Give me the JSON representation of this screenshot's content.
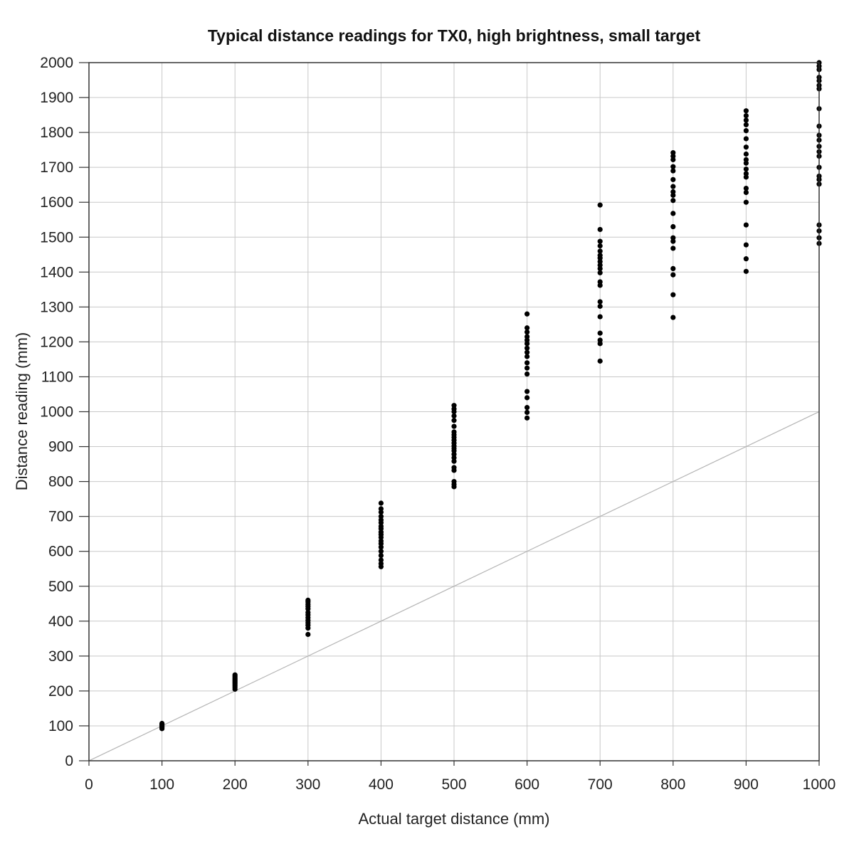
{
  "chart_data": {
    "type": "scatter",
    "title": "Typical distance readings for TX0, high brightness, small target",
    "xlabel": "Actual target distance (mm)",
    "ylabel": "Distance reading (mm)",
    "xlim": [
      0,
      1000
    ],
    "ylim": [
      0,
      2000
    ],
    "xticks": [
      0,
      100,
      200,
      300,
      400,
      500,
      600,
      700,
      800,
      900,
      1000
    ],
    "yticks": [
      0,
      100,
      200,
      300,
      400,
      500,
      600,
      700,
      800,
      900,
      1000,
      1100,
      1200,
      1300,
      1400,
      1500,
      1600,
      1700,
      1800,
      1900,
      2000
    ],
    "grid": true,
    "reference_line": {
      "from": [
        0,
        0
      ],
      "to": [
        1000,
        1000
      ],
      "color": "#b5b5b5"
    },
    "point_color": "#000000",
    "series": [
      {
        "x": 100,
        "y": [
          92,
          95,
          97,
          99,
          101,
          103,
          105,
          107
        ]
      },
      {
        "x": 200,
        "y": [
          205,
          210,
          214,
          218,
          222,
          226,
          230,
          234,
          238,
          242,
          246
        ]
      },
      {
        "x": 300,
        "y": [
          362,
          380,
          388,
          395,
          402,
          410,
          418,
          425,
          435,
          442,
          448,
          455,
          460
        ]
      },
      {
        "x": 400,
        "y": [
          556,
          565,
          575,
          588,
          600,
          612,
          622,
          630,
          640,
          648,
          655,
          665,
          672,
          682,
          690,
          700,
          712,
          722,
          738
        ]
      },
      {
        "x": 500,
        "y": [
          785,
          792,
          800,
          832,
          840,
          858,
          868,
          878,
          888,
          895,
          902,
          910,
          918,
          926,
          934,
          942,
          958,
          975,
          988,
          1000,
          1008,
          1018
        ]
      },
      {
        "x": 600,
        "y": [
          982,
          998,
          1012,
          1040,
          1058,
          1108,
          1125,
          1140,
          1158,
          1170,
          1182,
          1195,
          1205,
          1215,
          1228,
          1240,
          1280
        ]
      },
      {
        "x": 700,
        "y": [
          1145,
          1195,
          1205,
          1225,
          1272,
          1302,
          1315,
          1362,
          1372,
          1398,
          1410,
          1420,
          1430,
          1440,
          1448,
          1460,
          1475,
          1488,
          1522,
          1592
        ]
      },
      {
        "x": 800,
        "y": [
          1270,
          1335,
          1392,
          1410,
          1468,
          1488,
          1498,
          1530,
          1568,
          1605,
          1620,
          1630,
          1645,
          1665,
          1690,
          1702,
          1722,
          1732,
          1742
        ]
      },
      {
        "x": 900,
        "y": [
          1402,
          1438,
          1478,
          1535,
          1600,
          1628,
          1640,
          1672,
          1682,
          1695,
          1712,
          1722,
          1738,
          1758,
          1782,
          1805,
          1822,
          1835,
          1848,
          1862
        ]
      },
      {
        "x": 1000,
        "y": [
          1482,
          1498,
          1518,
          1535,
          1652,
          1665,
          1675,
          1700,
          1732,
          1745,
          1760,
          1778,
          1792,
          1818,
          1868,
          1925,
          1935,
          1948,
          1958,
          1980,
          1990,
          2000
        ]
      }
    ]
  }
}
